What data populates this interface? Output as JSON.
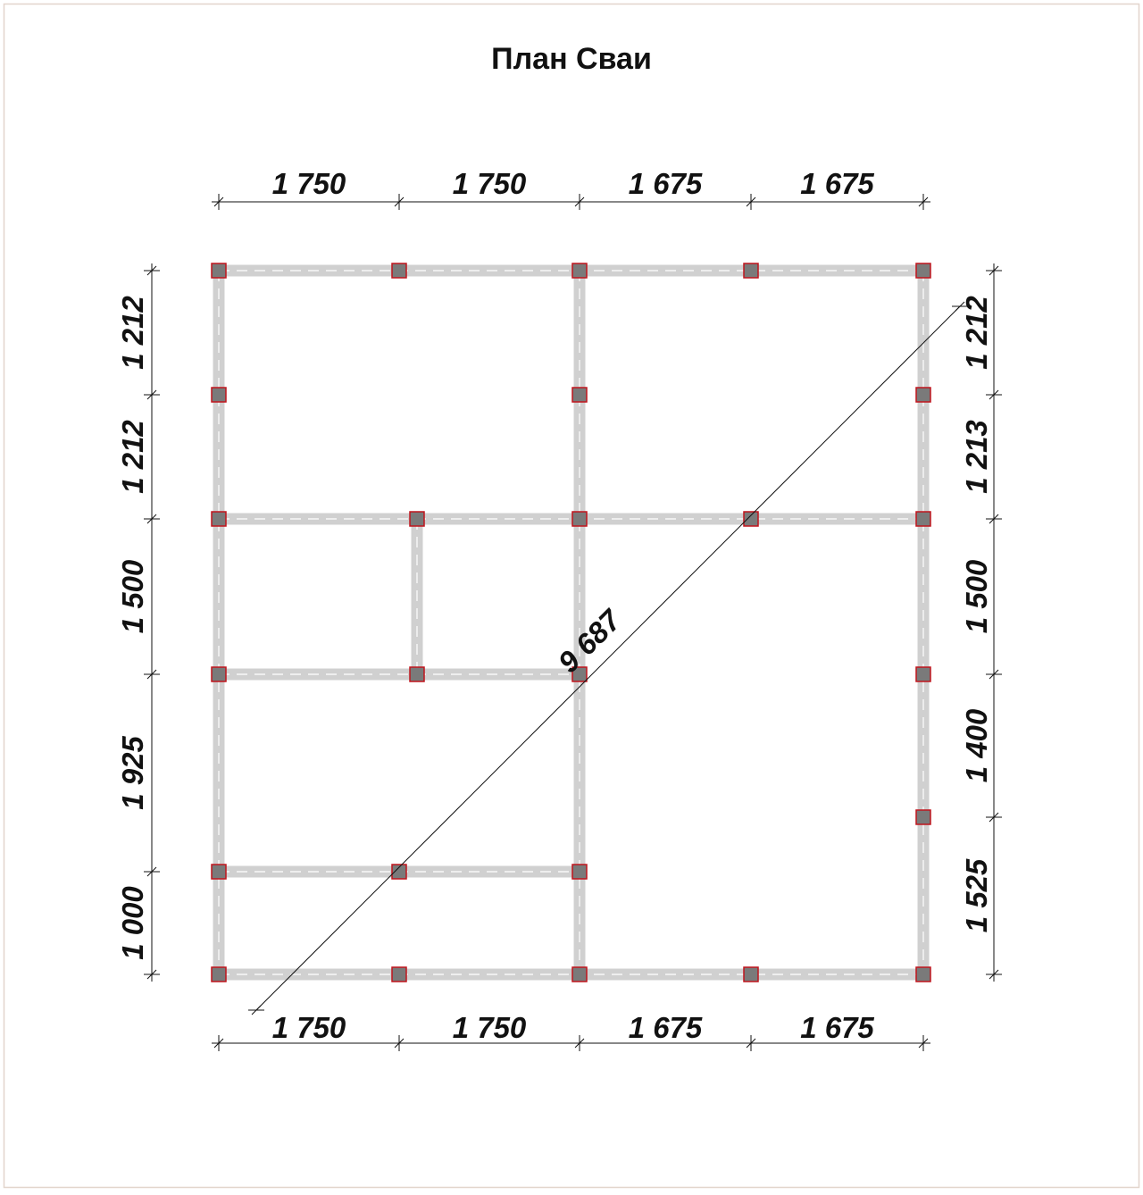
{
  "title": "План Сваи",
  "dimensions": {
    "top": [
      "1 750",
      "1 750",
      "1 675",
      "1 675"
    ],
    "bottom": [
      "1 750",
      "1 750",
      "1 675",
      "1 675"
    ],
    "left": [
      "1 212",
      "1 212",
      "1 500",
      "1 925",
      "1 000"
    ],
    "right": [
      "1 212",
      "1 213",
      "1 500",
      "1 400",
      "1 525"
    ],
    "diagonal": "9 687"
  }
}
